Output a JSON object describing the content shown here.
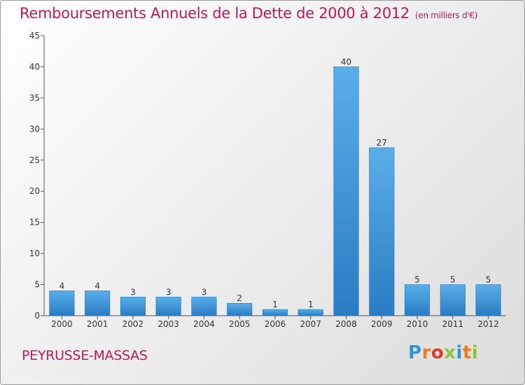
{
  "chart_data": {
    "type": "bar",
    "title": "Remboursements Annuels de la Dette de 2000 à 2012",
    "subtitle": "(en milliers d'€)",
    "categories": [
      "2000",
      "2001",
      "2002",
      "2003",
      "2004",
      "2005",
      "2006",
      "2007",
      "2008",
      "2009",
      "2010",
      "2011",
      "2012"
    ],
    "values": [
      4,
      4,
      3,
      3,
      3,
      2,
      1,
      1,
      40,
      27,
      5,
      5,
      5
    ],
    "data_labels": [
      "4",
      "4",
      "3",
      "3",
      "3",
      "2",
      "1",
      "1",
      "40",
      "27",
      "5",
      "5",
      "5"
    ],
    "yticks": [
      "0",
      "5",
      "10",
      "15",
      "20",
      "25",
      "30",
      "35",
      "40",
      "45"
    ],
    "ylim": [
      0,
      45
    ],
    "xlabel": "",
    "ylabel": "",
    "grid": false,
    "legend": "none",
    "bar_color": "#3a8fd9",
    "bar_color_highlight": "#5aaee8"
  },
  "commune": "PEYRUSSE-MASSAS",
  "brand": {
    "name": "Proxiti",
    "letters": [
      "P",
      "r",
      "o",
      "x",
      "i",
      "t",
      "i"
    ]
  },
  "colors": {
    "title": "#c0185a",
    "axis": "#333333"
  }
}
